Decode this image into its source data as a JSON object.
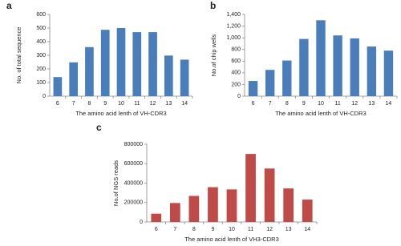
{
  "chart_data": [
    {
      "type": "bar",
      "panel": "a",
      "x_label": "The amino acid  lenth of VH-CDR3",
      "y_label": "No. of total sequence",
      "categories": [
        "6",
        "7",
        "8",
        "9",
        "10",
        "11",
        "12",
        "13",
        "14"
      ],
      "values": [
        140,
        248,
        360,
        487,
        500,
        470,
        470,
        298,
        268
      ],
      "color": "#4a7ebb",
      "ylim": [
        0,
        600
      ],
      "yticks": [
        0,
        100,
        200,
        300,
        400,
        500,
        600
      ]
    },
    {
      "type": "bar",
      "panel": "b",
      "x_label": "The amino acid  lenth of VH-CDR3",
      "y_label": "No.of chip wells",
      "categories": [
        "6",
        "7",
        "8",
        "9",
        "10",
        "11",
        "12",
        "13",
        "14"
      ],
      "values": [
        260,
        450,
        610,
        980,
        1300,
        1040,
        990,
        850,
        780
      ],
      "color": "#4a7ebb",
      "ylim": [
        0,
        1400
      ],
      "yticks": [
        0,
        200,
        400,
        600,
        800,
        {
          "value": 1000,
          "label": "1,000"
        },
        {
          "value": 1200,
          "label": "1,200"
        },
        {
          "value": 1400,
          "label": "1,400"
        }
      ]
    },
    {
      "type": "bar",
      "panel": "c",
      "x_label": "The amino acid  lenth of VH3-CDR3",
      "y_label": "No.of NGS reads",
      "categories": [
        "6",
        "7",
        "8",
        "9",
        "10",
        "11",
        "12",
        "13",
        "14"
      ],
      "values": [
        85000,
        195000,
        268000,
        358000,
        335000,
        700000,
        550000,
        345000,
        230000
      ],
      "color": "#be4b48",
      "ylim": [
        0,
        800000
      ],
      "yticks": [
        0,
        200000,
        400000,
        600000,
        800000
      ]
    }
  ]
}
